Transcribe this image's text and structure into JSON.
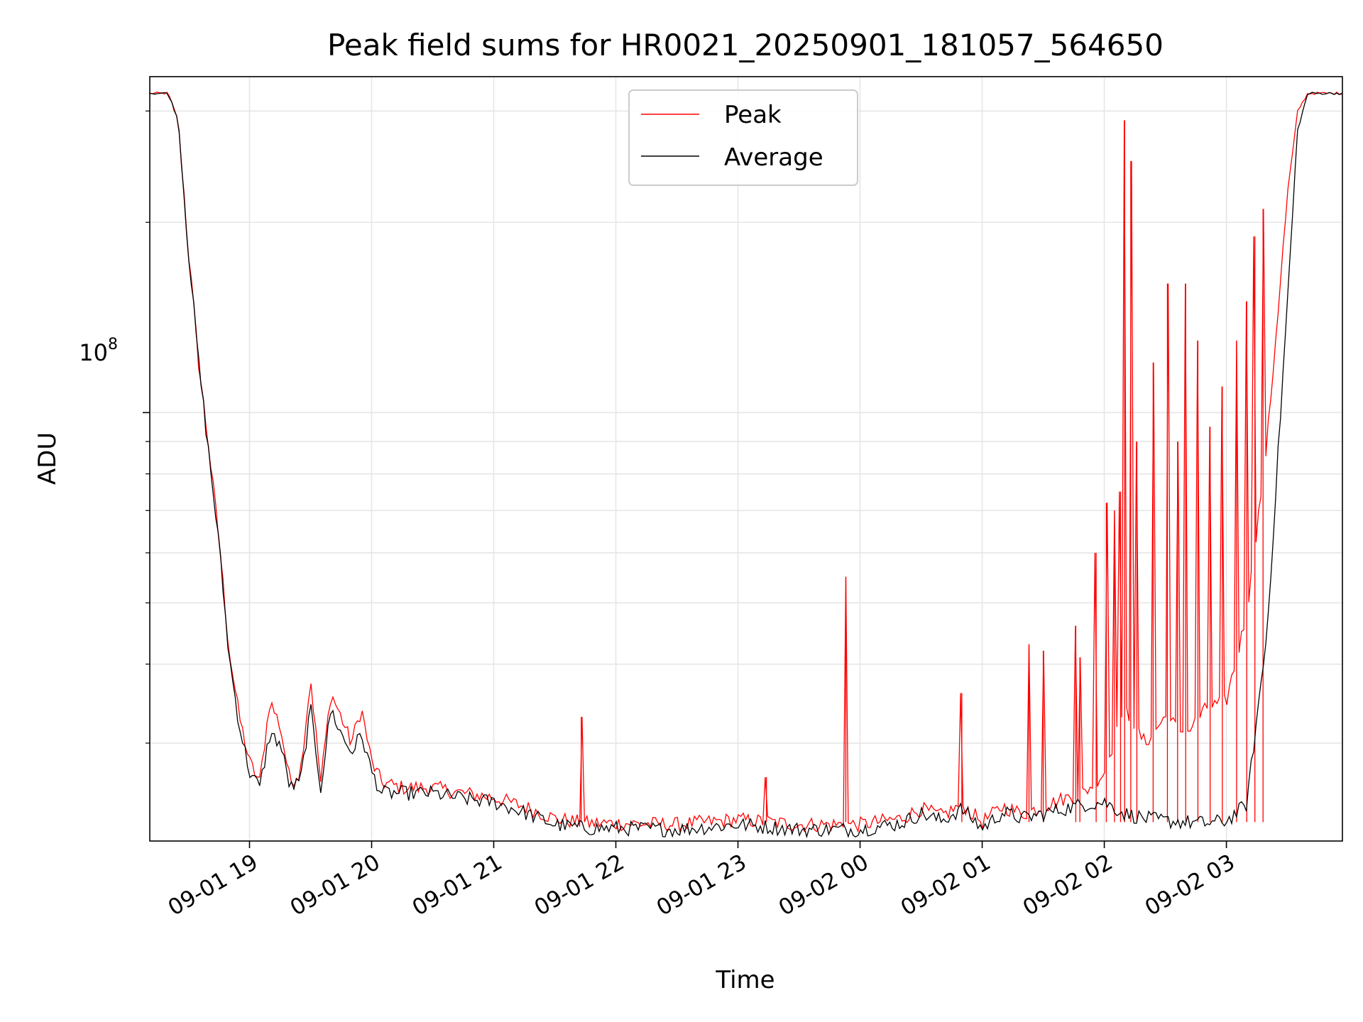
{
  "chart_data": {
    "type": "line",
    "title": "Peak field sums for HR0021_20250901_181057_564650",
    "xlabel": "Time",
    "ylabel": "ADU",
    "yscale": "log",
    "grid": true,
    "legend_position": "upper center",
    "x_ticks": [
      "09-01 19",
      "09-01 20",
      "09-01 21",
      "09-01 22",
      "09-01 23",
      "09-02 00",
      "09-02 01",
      "09-02 02",
      "09-02 03"
    ],
    "y_major_tick_label": "10^8",
    "xlim": [
      "09-01 18:11",
      "09-02 03:57"
    ],
    "ylim": [
      21000000,
      340000000
    ],
    "series": [
      {
        "name": "Peak",
        "color": "#ff0000",
        "x": [
          "09-01 18:11",
          "09-01 18:20",
          "09-01 18:25",
          "09-01 18:30",
          "09-01 18:35",
          "09-01 18:40",
          "09-01 18:45",
          "09-01 18:50",
          "09-01 18:55",
          "09-01 19:00",
          "09-01 19:05",
          "09-01 19:10",
          "09-01 19:15",
          "09-01 19:20",
          "09-01 19:25",
          "09-01 19:30",
          "09-01 19:35",
          "09-01 19:40",
          "09-01 19:45",
          "09-01 19:50",
          "09-01 19:55",
          "09-01 20:00",
          "09-01 20:05",
          "09-01 20:15",
          "09-01 20:30",
          "09-01 20:45",
          "09-01 21:00",
          "09-01 21:15",
          "09-01 21:30",
          "09-01 21:45",
          "09-01 22:00",
          "09-01 22:30",
          "09-01 23:00",
          "09-01 23:30",
          "09-02 00:00",
          "09-02 00:20",
          "09-02 00:30",
          "09-02 00:40",
          "09-02 00:50",
          "09-02 01:00",
          "09-02 01:10",
          "09-02 01:20",
          "09-02 01:30",
          "09-02 01:40",
          "09-02 01:50",
          "09-02 02:00",
          "09-02 02:10",
          "09-02 02:20",
          "09-02 02:30",
          "09-02 02:40",
          "09-02 02:50",
          "09-02 03:00",
          "09-02 03:10",
          "09-02 03:20",
          "09-02 03:30",
          "09-02 03:35",
          "09-02 03:40",
          "09-02 03:45",
          "09-02 03:57"
        ],
        "values": [
          320000000,
          320000000,
          290000000,
          180000000,
          120000000,
          88000000,
          63000000,
          42000000,
          33000000,
          28000000,
          26000000,
          35000000,
          32000000,
          26000000,
          27000000,
          38000000,
          26000000,
          36000000,
          33000000,
          30000000,
          34000000,
          28000000,
          26000000,
          25500000,
          25500000,
          25000000,
          24600000,
          23800000,
          22800000,
          22400000,
          22400000,
          22300000,
          22700000,
          22300000,
          22300000,
          22800000,
          23600000,
          23000000,
          24000000,
          22500000,
          23800000,
          23200000,
          23800000,
          24500000,
          25000000,
          27000000,
          34000000,
          30000000,
          33000000,
          31000000,
          34000000,
          35000000,
          48000000,
          90000000,
          220000000,
          300000000,
          320000000,
          320000000,
          320000000
        ]
      },
      {
        "name": "Average",
        "color": "#000000",
        "x": [
          "09-01 18:11",
          "09-01 18:20",
          "09-01 18:25",
          "09-01 18:30",
          "09-01 18:35",
          "09-01 18:40",
          "09-01 18:45",
          "09-01 18:50",
          "09-01 18:55",
          "09-01 19:00",
          "09-01 19:05",
          "09-01 19:10",
          "09-01 19:15",
          "09-01 19:20",
          "09-01 19:25",
          "09-01 19:30",
          "09-01 19:35",
          "09-01 19:40",
          "09-01 19:45",
          "09-01 19:50",
          "09-01 19:55",
          "09-01 20:00",
          "09-01 20:05",
          "09-01 20:15",
          "09-01 20:30",
          "09-01 20:45",
          "09-01 21:00",
          "09-01 21:15",
          "09-01 21:30",
          "09-01 21:45",
          "09-01 22:00",
          "09-01 22:30",
          "09-01 23:00",
          "09-01 23:30",
          "09-02 00:00",
          "09-02 00:20",
          "09-02 00:30",
          "09-02 00:40",
          "09-02 00:50",
          "09-02 01:00",
          "09-02 01:10",
          "09-02 01:20",
          "09-02 01:30",
          "09-02 01:40",
          "09-02 01:50",
          "09-02 02:00",
          "09-02 02:10",
          "09-02 02:20",
          "09-02 02:30",
          "09-02 02:40",
          "09-02 02:50",
          "09-02 03:00",
          "09-02 03:10",
          "09-02 03:20",
          "09-02 03:30",
          "09-02 03:35",
          "09-02 03:40",
          "09-02 03:45",
          "09-02 03:57"
        ],
        "values": [
          320000000,
          320000000,
          290000000,
          180000000,
          120000000,
          86000000,
          62000000,
          41000000,
          32000000,
          27000000,
          25500000,
          31000000,
          30000000,
          25500000,
          26000000,
          34000000,
          25500000,
          34000000,
          31000000,
          29000000,
          31000000,
          27000000,
          25000000,
          25000000,
          25000000,
          24500000,
          24200000,
          23300000,
          22300000,
          22000000,
          22000000,
          21900000,
          22300000,
          21900000,
          21900000,
          22400000,
          23200000,
          22600000,
          23600000,
          22000000,
          23300000,
          22800000,
          23200000,
          23600000,
          24000000,
          24200000,
          23200000,
          22800000,
          22600000,
          22500000,
          22400000,
          22600000,
          24000000,
          45000000,
          150000000,
          280000000,
          320000000,
          320000000,
          320000000
        ]
      }
    ],
    "peak_spikes": [
      {
        "x": "09-01 21:43",
        "value": 33000000
      },
      {
        "x": "09-01 23:14",
        "value": 26500000
      },
      {
        "x": "09-01 23:53",
        "value": 55000000
      },
      {
        "x": "09-02 00:50",
        "value": 36000000
      },
      {
        "x": "09-02 01:23",
        "value": 43000000
      },
      {
        "x": "09-02 01:30",
        "value": 42000000
      },
      {
        "x": "09-02 01:46",
        "value": 46000000
      },
      {
        "x": "09-02 01:48",
        "value": 41000000
      },
      {
        "x": "09-02 01:56",
        "value": 60000000
      },
      {
        "x": "09-02 02:01",
        "value": 72000000
      },
      {
        "x": "09-02 02:05",
        "value": 70000000
      },
      {
        "x": "09-02 02:08",
        "value": 75000000
      },
      {
        "x": "09-02 02:10",
        "value": 290000000
      },
      {
        "x": "09-02 02:13",
        "value": 250000000
      },
      {
        "x": "09-02 02:16",
        "value": 90000000
      },
      {
        "x": "09-02 02:24",
        "value": 120000000
      },
      {
        "x": "09-02 02:31",
        "value": 160000000
      },
      {
        "x": "09-02 02:36",
        "value": 90000000
      },
      {
        "x": "09-02 02:40",
        "value": 160000000
      },
      {
        "x": "09-02 02:46",
        "value": 130000000
      },
      {
        "x": "09-02 02:52",
        "value": 95000000
      },
      {
        "x": "09-02 02:58",
        "value": 110000000
      },
      {
        "x": "09-02 03:05",
        "value": 130000000
      },
      {
        "x": "09-02 03:10",
        "value": 150000000
      },
      {
        "x": "09-02 03:14",
        "value": 190000000
      },
      {
        "x": "09-02 03:18",
        "value": 210000000
      }
    ]
  }
}
